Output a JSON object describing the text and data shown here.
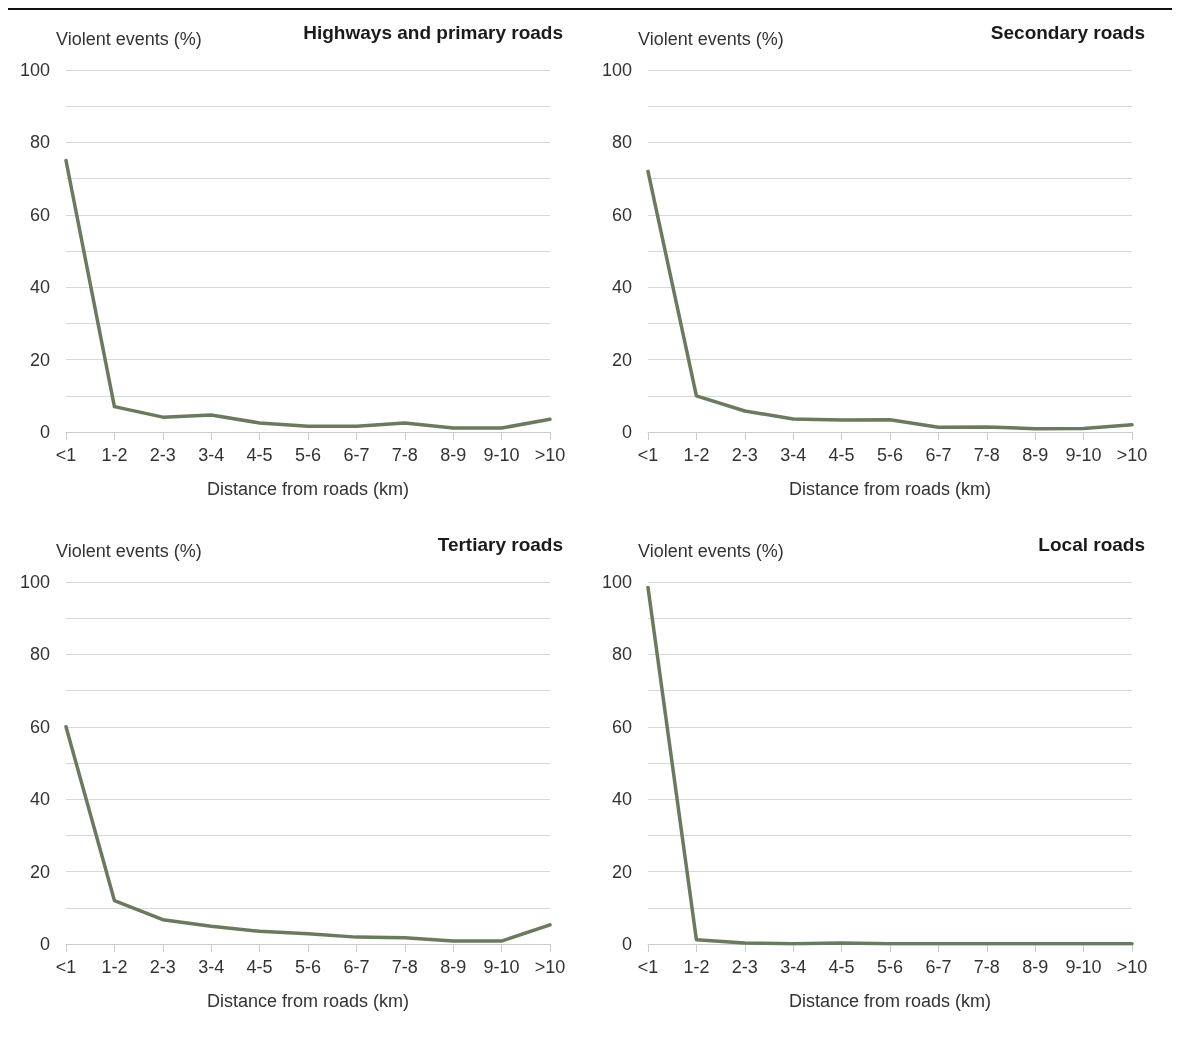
{
  "chart_data": [
    {
      "type": "line",
      "title": "Highways and primary roads",
      "xlabel": "Distance from roads (km)",
      "ylabel": "Violent events (%)",
      "categories": [
        "<1",
        "1-2",
        "2-3",
        "3-4",
        "4-5",
        "5-6",
        "6-7",
        "7-8",
        "8-9",
        "9-10",
        ">10"
      ],
      "series": [
        {
          "color": "#6b7a5c",
          "values": [
            75,
            7,
            4.1,
            4.7,
            2.5,
            1.6,
            1.6,
            2.5,
            1.1,
            1.1,
            3.5
          ]
        }
      ],
      "ylim": [
        0,
        100
      ],
      "yticks": [
        0,
        {
          "value": 10,
          "label": null
        },
        20,
        {
          "value": 30,
          "label": null
        },
        40,
        {
          "value": 50,
          "label": null
        },
        60,
        {
          "value": 70,
          "label": null
        },
        80,
        {
          "value": 90,
          "label": null
        },
        100
      ],
      "grid": "y",
      "marker": "none",
      "line_style": "solid"
    },
    {
      "type": "line",
      "title": "Secondary roads",
      "xlabel": "Distance from roads (km)",
      "ylabel": "Violent events (%)",
      "categories": [
        "<1",
        "1-2",
        "2-3",
        "3-4",
        "4-5",
        "5-6",
        "6-7",
        "7-8",
        "8-9",
        "9-10",
        ">10"
      ],
      "series": [
        {
          "color": "#6b7a5c",
          "values": [
            72,
            10,
            5.8,
            3.6,
            3.3,
            3.4,
            1.3,
            1.4,
            0.9,
            1,
            2
          ]
        }
      ],
      "ylim": [
        0,
        100
      ],
      "yticks": [
        0,
        {
          "value": 10,
          "label": null
        },
        20,
        {
          "value": 30,
          "label": null
        },
        40,
        {
          "value": 50,
          "label": null
        },
        60,
        {
          "value": 70,
          "label": null
        },
        80,
        {
          "value": 90,
          "label": null
        },
        100
      ],
      "grid": "y",
      "marker": "none",
      "line_style": "solid"
    },
    {
      "type": "line",
      "title": "Tertiary roads",
      "xlabel": "Distance from roads (km)",
      "ylabel": "Violent events (%)",
      "categories": [
        "<1",
        "1-2",
        "2-3",
        "3-4",
        "4-5",
        "5-6",
        "6-7",
        "7-8",
        "8-9",
        "9-10",
        ">10"
      ],
      "series": [
        {
          "color": "#6b7a5c",
          "values": [
            60,
            12,
            6.7,
            4.9,
            3.5,
            2.8,
            1.9,
            1.7,
            0.8,
            0.8,
            5.3
          ]
        }
      ],
      "ylim": [
        0,
        100
      ],
      "yticks": [
        0,
        {
          "value": 10,
          "label": null
        },
        20,
        {
          "value": 30,
          "label": null
        },
        40,
        {
          "value": 50,
          "label": null
        },
        60,
        {
          "value": 70,
          "label": null
        },
        80,
        {
          "value": 90,
          "label": null
        },
        100
      ],
      "grid": "y",
      "marker": "none",
      "line_style": "solid"
    },
    {
      "type": "line",
      "title": "Local roads",
      "xlabel": "Distance from roads (km)",
      "ylabel": "Violent events (%)",
      "categories": [
        "<1",
        "1-2",
        "2-3",
        "3-4",
        "4-5",
        "5-6",
        "6-7",
        "7-8",
        "8-9",
        "9-10",
        ">10"
      ],
      "series": [
        {
          "color": "#6b7a5c",
          "values": [
            98.5,
            1.2,
            0.3,
            0.1,
            0.3,
            0.1,
            0.1,
            0.1,
            0.1,
            0.1,
            0.1
          ]
        }
      ],
      "ylim": [
        0,
        100
      ],
      "yticks": [
        0,
        {
          "value": 10,
          "label": null
        },
        20,
        {
          "value": 30,
          "label": null
        },
        40,
        {
          "value": 50,
          "label": null
        },
        60,
        {
          "value": 70,
          "label": null
        },
        80,
        {
          "value": 90,
          "label": null
        },
        100
      ],
      "grid": "y",
      "marker": "none",
      "line_style": "solid"
    }
  ]
}
